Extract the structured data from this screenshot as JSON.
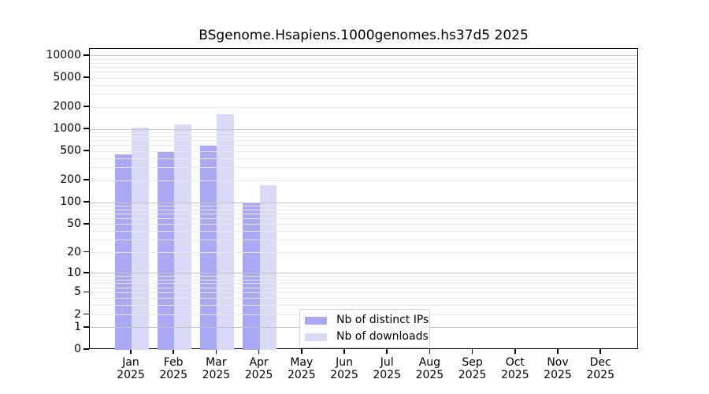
{
  "title": "BSgenome.Hsapiens.1000genomes.hs37d5 2025",
  "colors": {
    "bar_distinct_ips": "#a8a8f4",
    "bar_downloads": "#d9d9f8",
    "grid_minor": "#e8e8e8",
    "grid_major": "#c2c2c2",
    "axis": "#000000",
    "legend_border": "#cccccc",
    "background": "#ffffff",
    "text": "#000000"
  },
  "chart_data": {
    "type": "bar",
    "title": "BSgenome.Hsapiens.1000genomes.hs37d5 2025",
    "categories": [
      "Jan",
      "Feb",
      "Mar",
      "Apr",
      "May",
      "Jun",
      "Jul",
      "Aug",
      "Sep",
      "Oct",
      "Nov",
      "Dec"
    ],
    "year_label": "2025",
    "series": [
      {
        "name": "Nb of distinct IPs",
        "values": [
          460,
          500,
          620,
          97,
          0,
          0,
          0,
          0,
          0,
          0,
          0,
          0
        ]
      },
      {
        "name": "Nb of downloads",
        "values": [
          1060,
          1160,
          1590,
          175,
          0,
          0,
          0,
          0,
          0,
          0,
          0,
          0
        ]
      }
    ],
    "yscale": "log10(1+x), 0 at baseline",
    "yticks": [
      10000,
      5000,
      2000,
      1000,
      500,
      200,
      100,
      50,
      20,
      10,
      5,
      2,
      1,
      0
    ],
    "ylim": [
      0,
      12500
    ],
    "xlabel": "",
    "ylabel": "",
    "grid": true,
    "grid_major_values": [
      1,
      10,
      100,
      1000,
      10000
    ],
    "grid_minor_values": [
      2,
      3,
      4,
      5,
      6,
      7,
      8,
      9,
      20,
      30,
      40,
      50,
      60,
      70,
      80,
      90,
      200,
      300,
      400,
      500,
      600,
      700,
      800,
      900,
      2000,
      3000,
      4000,
      5000,
      6000,
      7000,
      8000,
      9000
    ],
    "legend_position": "inside bottom-center",
    "bars_per_group": 2
  }
}
